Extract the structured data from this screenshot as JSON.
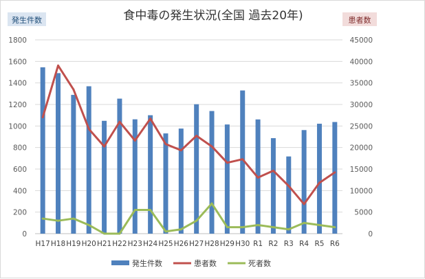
{
  "chart_data": {
    "type": "bar+line",
    "title": "食中毒の発生状況(全国 過去20年)",
    "left_axis_label": "発生件数",
    "right_axis_label": "患者数",
    "categories": [
      "H17",
      "H18",
      "H19",
      "H20",
      "H21",
      "H22",
      "H23",
      "H24",
      "H25",
      "H26",
      "H27",
      "H28",
      "H29",
      "H30",
      "R1",
      "R2",
      "R3",
      "R4",
      "R5",
      "R6"
    ],
    "ylim_left": [
      0,
      1800
    ],
    "yticks_left": [
      "0",
      "200",
      "400",
      "600",
      "800",
      "1000",
      "1200",
      "1400",
      "1600",
      "1800"
    ],
    "ylim_right": [
      0,
      45000
    ],
    "yticks_right": [
      "0",
      "5000",
      "10000",
      "15000",
      "20000",
      "25000",
      "30000",
      "35000",
      "40000",
      "45000"
    ],
    "grid": true,
    "legend_position": "bottom",
    "series": [
      {
        "name": "発生件数",
        "kind": "bar",
        "axis": "left",
        "color": "#4f81bd",
        "values": [
          1545,
          1491,
          1289,
          1369,
          1048,
          1254,
          1062,
          1100,
          931,
          976,
          1202,
          1139,
          1014,
          1330,
          1061,
          887,
          717,
          962,
          1021,
          1037
        ]
      },
      {
        "name": "患者数",
        "kind": "line",
        "axis": "right",
        "color": "#c0504d",
        "values": [
          27019,
          39026,
          33477,
          24303,
          20249,
          25972,
          21616,
          26699,
          20802,
          19355,
          22718,
          20252,
          16464,
          17282,
          13018,
          14613,
          11080,
          6856,
          11803,
          14229
        ]
      },
      {
        "name": "死者数",
        "kind": "line",
        "axis": "right",
        "color": "#9bbb59",
        "values": [
          3500,
          3000,
          3500,
          2000,
          0,
          0,
          5500,
          5500,
          500,
          1000,
          3000,
          7000,
          1500,
          1500,
          2000,
          1500,
          1000,
          2500,
          2000,
          1500
        ]
      }
    ]
  }
}
